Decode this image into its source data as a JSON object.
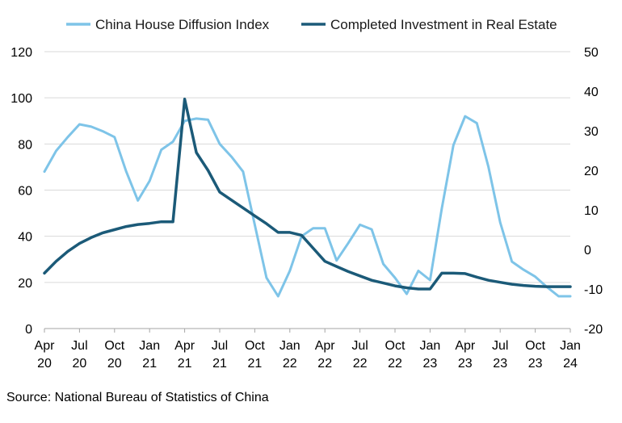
{
  "source": "Source: National Bureau of Statistics of China",
  "chart_data": {
    "type": "line",
    "title": "",
    "xlabel": "",
    "ylabel_left": "",
    "ylabel_right": "",
    "legend_position": "top-center",
    "grid": "horizontal",
    "x_ticks": [
      {
        "top": "Apr",
        "bottom": "20",
        "index": 0
      },
      {
        "top": "Jul",
        "bottom": "20",
        "index": 3
      },
      {
        "top": "Oct",
        "bottom": "20",
        "index": 6
      },
      {
        "top": "Jan",
        "bottom": "21",
        "index": 9
      },
      {
        "top": "Apr",
        "bottom": "21",
        "index": 12
      },
      {
        "top": "Jul",
        "bottom": "21",
        "index": 15
      },
      {
        "top": "Oct",
        "bottom": "21",
        "index": 18
      },
      {
        "top": "Jan",
        "bottom": "22",
        "index": 21
      },
      {
        "top": "Apr",
        "bottom": "22",
        "index": 24
      },
      {
        "top": "Jul",
        "bottom": "22",
        "index": 27
      },
      {
        "top": "Oct",
        "bottom": "22",
        "index": 30
      },
      {
        "top": "Jan",
        "bottom": "23",
        "index": 33
      },
      {
        "top": "Apr",
        "bottom": "23",
        "index": 36
      },
      {
        "top": "Jul",
        "bottom": "23",
        "index": 39
      },
      {
        "top": "Oct",
        "bottom": "23",
        "index": 42
      },
      {
        "top": "Jan",
        "bottom": "24",
        "index": 45
      }
    ],
    "x": [
      "Apr 20",
      "May 20",
      "Jun 20",
      "Jul 20",
      "Aug 20",
      "Sep 20",
      "Oct 20",
      "Nov 20",
      "Dec 20",
      "Jan 21",
      "Feb 21",
      "Mar 21",
      "Apr 21",
      "May 21",
      "Jun 21",
      "Jul 21",
      "Aug 21",
      "Sep 21",
      "Oct 21",
      "Nov 21",
      "Dec 21",
      "Jan 22",
      "Feb 22",
      "Mar 22",
      "Apr 22",
      "May 22",
      "Jun 22",
      "Jul 22",
      "Aug 22",
      "Sep 22",
      "Oct 22",
      "Nov 22",
      "Dec 22",
      "Jan 23",
      "Feb 23",
      "Mar 23",
      "Apr 23",
      "May 23",
      "Jun 23",
      "Jul 23",
      "Aug 23",
      "Sep 23",
      "Oct 23",
      "Nov 23",
      "Dec 23",
      "Jan 24"
    ],
    "y_left": {
      "min": 0,
      "max": 120,
      "ticks": [
        0,
        20,
        40,
        60,
        80,
        100,
        120
      ]
    },
    "y_right": {
      "min": -20,
      "max": 50,
      "ticks": [
        -20,
        -10,
        0,
        10,
        20,
        30,
        40,
        50
      ]
    },
    "series": [
      {
        "name": "China House Diffusion Index",
        "axis": "left",
        "color": "#7ec4e8",
        "values": [
          68,
          77,
          83,
          88.5,
          87.5,
          85.5,
          83,
          68,
          55.5,
          64,
          77.5,
          81,
          90,
          91,
          90.5,
          80,
          74.5,
          68,
          45,
          22,
          14,
          25,
          40,
          43.5,
          43.5,
          29.5,
          37,
          45,
          43,
          28,
          22,
          15,
          25,
          21,
          52,
          79.5,
          92,
          89,
          70,
          46,
          29,
          25.5,
          22.5,
          18,
          14,
          14
        ]
      },
      {
        "name": "Completed Investment in Real Estate",
        "axis": "right",
        "color": "#1b5a78",
        "values": [
          -6,
          -3,
          -0.5,
          1.5,
          3,
          4.2,
          5,
          5.8,
          6.3,
          6.6,
          7,
          7,
          38,
          24.5,
          20,
          14.5,
          12.5,
          10.5,
          8.5,
          6.5,
          4.3,
          4.3,
          3.6,
          0.3,
          -3,
          -4.3,
          -5.6,
          -6.7,
          -7.8,
          -8.5,
          -9.2,
          -9.7,
          -10,
          -10,
          -6,
          -6,
          -6.1,
          -7,
          -7.8,
          -8.3,
          -8.8,
          -9.1,
          -9.3,
          -9.4,
          -9.4,
          -9.4
        ]
      }
    ]
  }
}
